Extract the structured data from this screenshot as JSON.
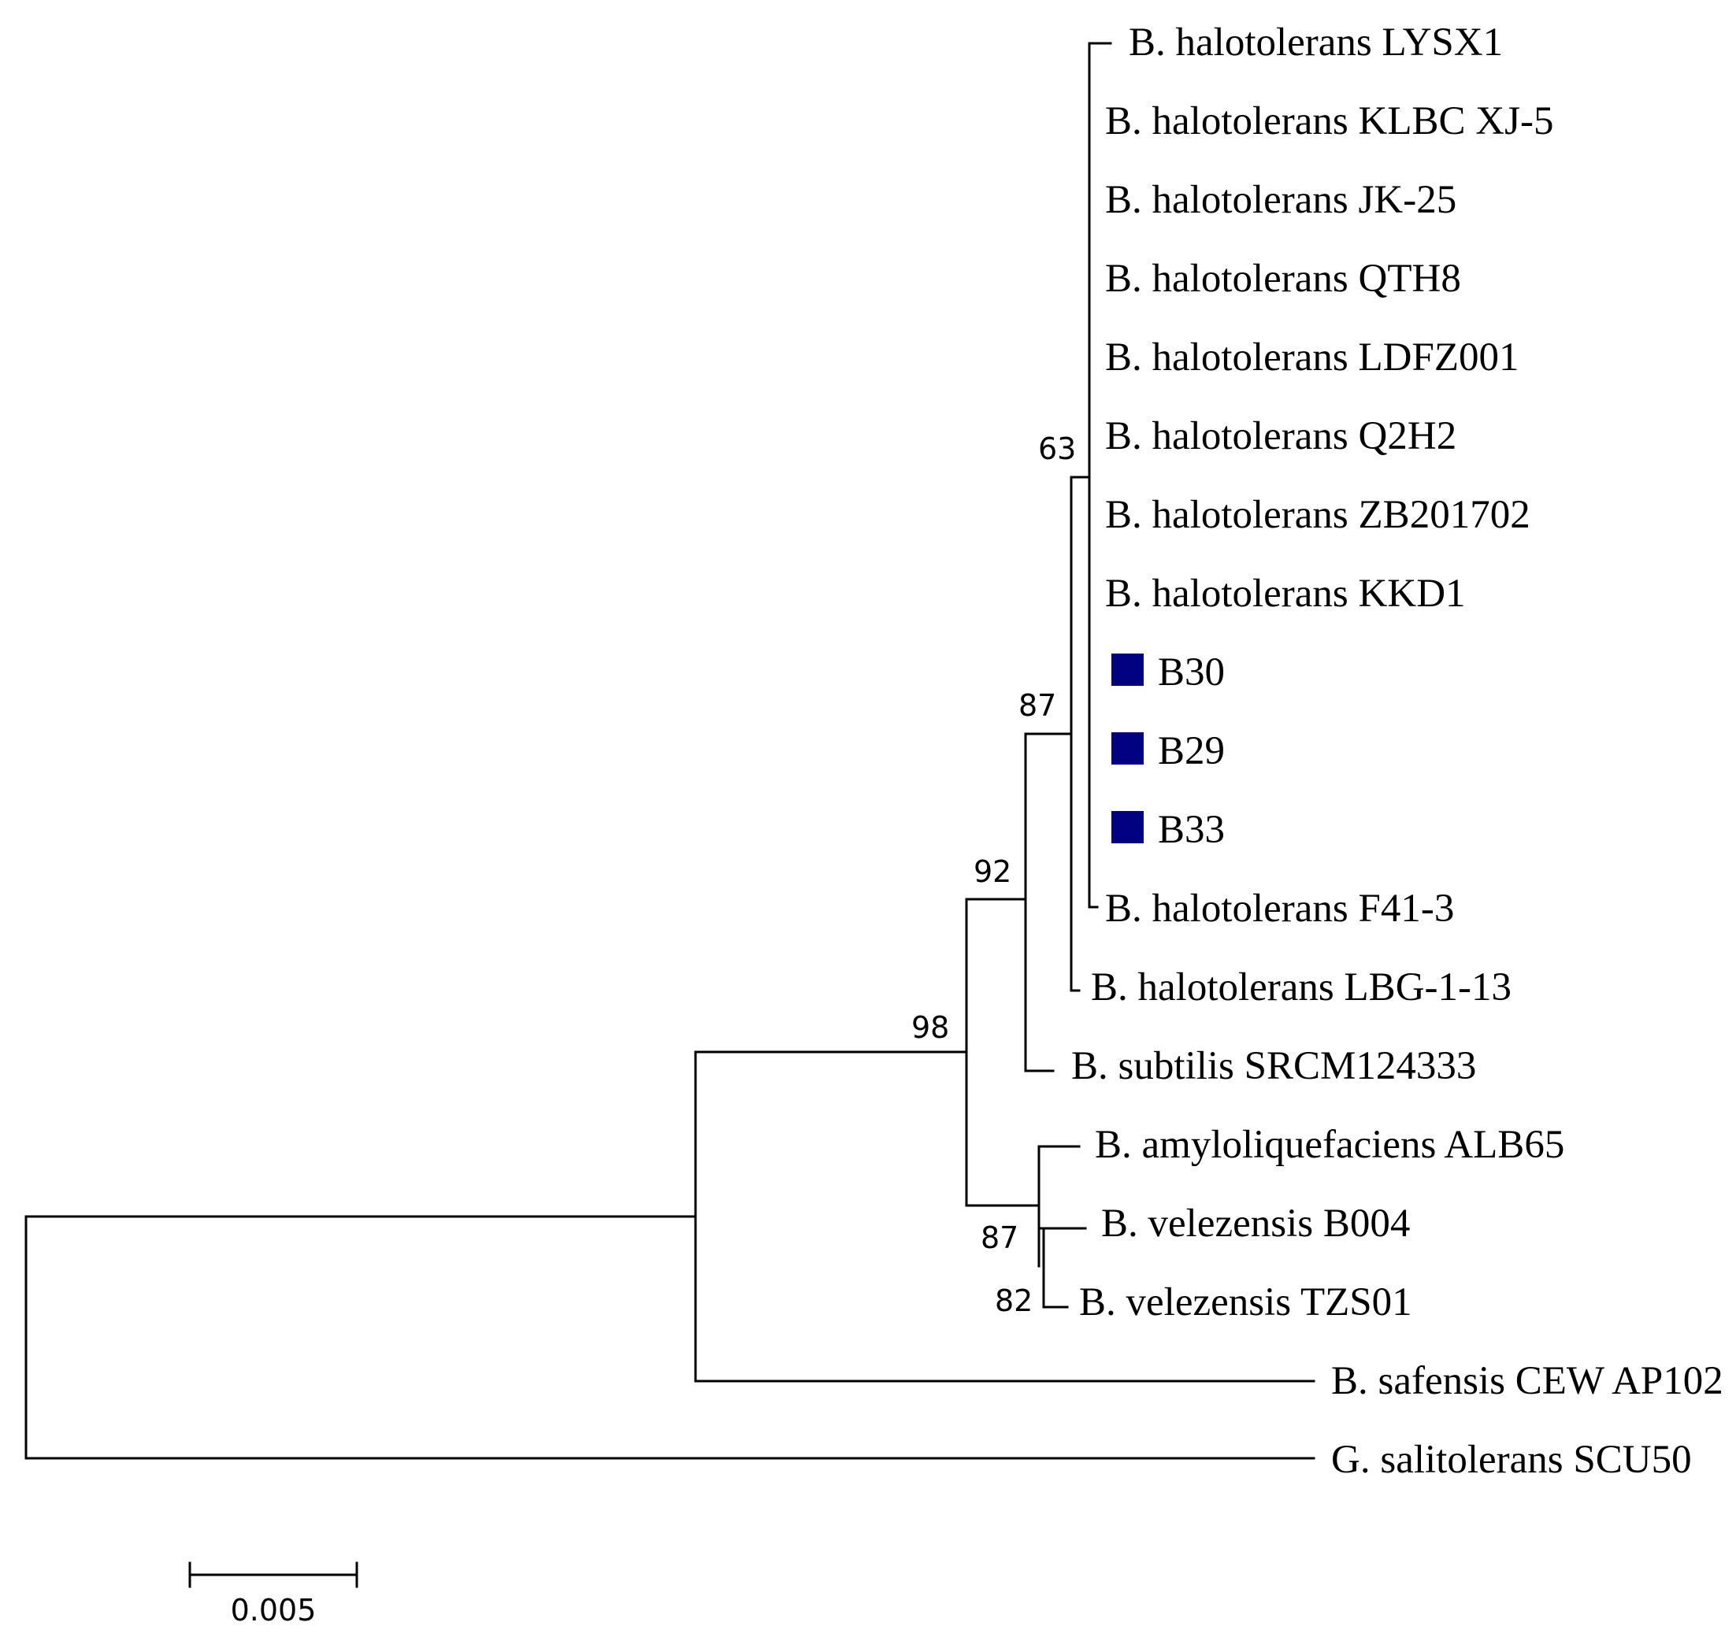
{
  "tree": {
    "taxa": [
      {
        "id": "t1",
        "genus": "B.",
        "species": "halotolerans",
        "strain": "LYSX1",
        "highlighted": false
      },
      {
        "id": "t2",
        "genus": "B.",
        "species": "halotolerans",
        "strain": "KLBC XJ-5",
        "highlighted": false
      },
      {
        "id": "t3",
        "genus": "B.",
        "species": "halotolerans",
        "strain": "JK-25",
        "highlighted": false
      },
      {
        "id": "t4",
        "genus": "B.",
        "species": "halotolerans",
        "strain": "QTH8",
        "highlighted": false
      },
      {
        "id": "t5",
        "genus": "B.",
        "species": "halotolerans",
        "strain": "LDFZ001",
        "highlighted": false
      },
      {
        "id": "t6",
        "genus": "B.",
        "species": "halotolerans",
        "strain": "Q2H2",
        "highlighted": false
      },
      {
        "id": "t7",
        "genus": "B.",
        "species": "halotolerans",
        "strain": "ZB201702",
        "highlighted": false
      },
      {
        "id": "t8",
        "genus": "B.",
        "species": "halotolerans",
        "strain": "KKD1",
        "highlighted": false
      },
      {
        "id": "t9",
        "genus": "",
        "species": "",
        "strain": "B30",
        "highlighted": true
      },
      {
        "id": "t10",
        "genus": "",
        "species": "",
        "strain": "B29",
        "highlighted": true
      },
      {
        "id": "t11",
        "genus": "",
        "species": "",
        "strain": "B33",
        "highlighted": true
      },
      {
        "id": "t12",
        "genus": "B.",
        "species": "halotolerans",
        "strain": "F41-3",
        "highlighted": false
      },
      {
        "id": "t13",
        "genus": "B.",
        "species": "halotolerans",
        "strain": "LBG-1-13",
        "highlighted": false
      },
      {
        "id": "t14",
        "genus": "B.",
        "species": "subtilis",
        "strain": "SRCM124333",
        "highlighted": false
      },
      {
        "id": "t15",
        "genus": "B.",
        "species": "amyloliquefaciens",
        "strain": "ALB65",
        "highlighted": false
      },
      {
        "id": "t16",
        "genus": "B.",
        "species": "velezensis",
        "strain": "B004",
        "highlighted": false
      },
      {
        "id": "t17",
        "genus": "B.",
        "species": "velezensis",
        "strain": "TZS01",
        "highlighted": false
      },
      {
        "id": "t18",
        "genus": "B.",
        "species": "safensis",
        "strain": "CEW AP102",
        "highlighted": false
      },
      {
        "id": "t19",
        "genus": "G.",
        "species": "salitolerans",
        "strain": "SCU50",
        "highlighted": false
      }
    ],
    "bootstrap_values": {
      "halotolerans_core": "63",
      "halotolerans_all": "87",
      "subtilis_group": "92",
      "bacillus_core": "98",
      "velezensis_pair": "82",
      "amylo_group": "87"
    },
    "highlight_color": "#000080",
    "scale_bar": {
      "label": "0.005",
      "length_substitutions": 0.005
    }
  }
}
